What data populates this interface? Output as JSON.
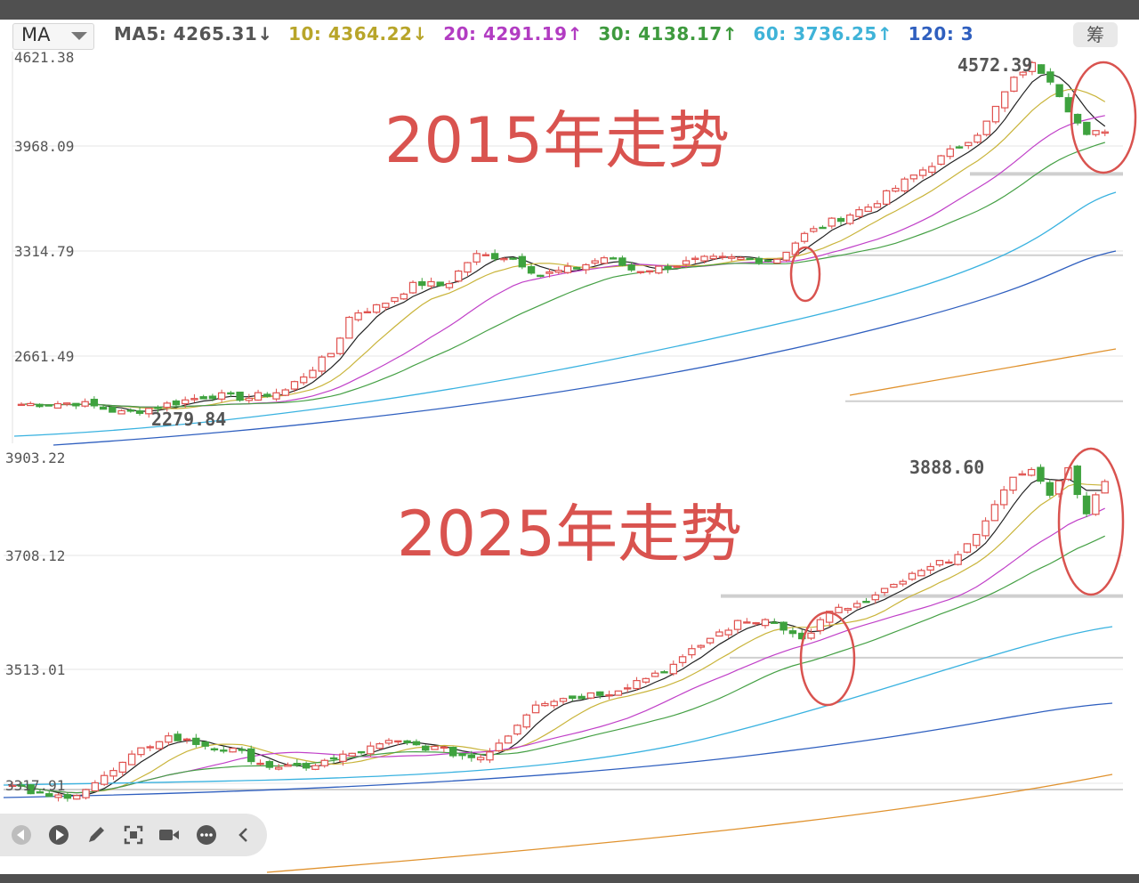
{
  "indicator": {
    "selector_label": "MA",
    "items": [
      {
        "text": "MA5: 4265.31↓",
        "color": "#555555"
      },
      {
        "text": "10: 4364.22↓",
        "color": "#b8a52a"
      },
      {
        "text": "20: 4291.19↑",
        "color": "#b23cc2"
      },
      {
        "text": "30: 4138.17↑",
        "color": "#3e9a3e"
      },
      {
        "text": "60: 3736.25↑",
        "color": "#3fb3d8"
      },
      {
        "text": "120: 3",
        "color": "#2f5fbf"
      }
    ],
    "chip_label": "筹"
  },
  "colors": {
    "up": "#e0524f",
    "down": "#3ea23e",
    "ma5": "#222222",
    "ma10": "#c9b43a",
    "ma20": "#c040c8",
    "ma30": "#45a045",
    "ma60": "#39b2e0",
    "ma120": "#2f5fbf",
    "ma250": "#e0922e",
    "annotation": "#d9534f"
  },
  "toolbar": {
    "icons": [
      "rewind-icon",
      "play-icon",
      "pen-icon",
      "crop-icon",
      "video-icon",
      "more-icon",
      "collapse-icon"
    ]
  },
  "chart_data": [
    {
      "type": "candlestick",
      "title": "2015年走势",
      "y_ticks": [
        "4621.38",
        "3968.09",
        "3314.79",
        "2661.49"
      ],
      "ylim": [
        2279.84,
        4621.38
      ],
      "annotations": {
        "high": "4572.39",
        "low": "2279.84"
      },
      "candle_count": 120,
      "anchors": [
        [
          0,
          2360
        ],
        [
          12,
          2370
        ],
        [
          22,
          2300
        ],
        [
          28,
          2340
        ],
        [
          40,
          2420
        ],
        [
          48,
          2400
        ],
        [
          56,
          2450
        ],
        [
          66,
          2700
        ],
        [
          70,
          2950
        ],
        [
          76,
          3000
        ],
        [
          84,
          3150
        ],
        [
          90,
          3130
        ],
        [
          96,
          3330
        ],
        [
          104,
          3320
        ],
        [
          110,
          3200
        ],
        [
          118,
          3250
        ],
        [
          124,
          3320
        ],
        [
          130,
          3230
        ],
        [
          136,
          3250
        ],
        [
          144,
          3300
        ],
        [
          152,
          3310
        ],
        [
          160,
          3300
        ],
        [
          166,
          3460
        ],
        [
          172,
          3550
        ],
        [
          180,
          3650
        ],
        [
          188,
          3820
        ],
        [
          196,
          3980
        ],
        [
          204,
          4150
        ],
        [
          210,
          4450
        ],
        [
          214,
          4580
        ],
        [
          218,
          4500
        ],
        [
          222,
          4300
        ],
        [
          226,
          4100
        ],
        [
          230,
          4150
        ]
      ],
      "ma_series": [
        {
          "name": "MA5"
        },
        {
          "name": "MA10"
        },
        {
          "name": "MA20"
        },
        {
          "name": "MA30"
        },
        {
          "name": "MA60"
        },
        {
          "name": "MA120"
        },
        {
          "name": "MA250"
        }
      ],
      "support_lines": [
        3860,
        3330,
        2380
      ]
    },
    {
      "type": "candlestick",
      "title": "2025年走势",
      "y_ticks": [
        "3903.22",
        "3708.12",
        "3513.01",
        "3317.91"
      ],
      "ylim": [
        3240,
        3903.22
      ],
      "annotations": {
        "high": "3888.60"
      },
      "anchors": [
        [
          0,
          3310
        ],
        [
          8,
          3290
        ],
        [
          14,
          3300
        ],
        [
          20,
          3330
        ],
        [
          28,
          3380
        ],
        [
          32,
          3400
        ],
        [
          40,
          3385
        ],
        [
          48,
          3370
        ],
        [
          56,
          3340
        ],
        [
          64,
          3350
        ],
        [
          72,
          3370
        ],
        [
          80,
          3390
        ],
        [
          88,
          3380
        ],
        [
          98,
          3360
        ],
        [
          104,
          3400
        ],
        [
          110,
          3460
        ],
        [
          118,
          3470
        ],
        [
          126,
          3480
        ],
        [
          132,
          3500
        ],
        [
          140,
          3530
        ],
        [
          146,
          3570
        ],
        [
          152,
          3600
        ],
        [
          160,
          3610
        ],
        [
          166,
          3570
        ],
        [
          172,
          3620
        ],
        [
          180,
          3640
        ],
        [
          188,
          3680
        ],
        [
          196,
          3710
        ],
        [
          204,
          3760
        ],
        [
          208,
          3840
        ],
        [
          214,
          3880
        ],
        [
          218,
          3830
        ],
        [
          222,
          3880
        ],
        [
          226,
          3800
        ],
        [
          230,
          3850
        ]
      ],
      "ma_series": [
        {
          "name": "MA5"
        },
        {
          "name": "MA10"
        },
        {
          "name": "MA20"
        },
        {
          "name": "MA30"
        },
        {
          "name": "MA60"
        },
        {
          "name": "MA120"
        },
        {
          "name": "MA250"
        }
      ],
      "support_lines": [
        3650,
        3540,
        3305
      ]
    }
  ]
}
